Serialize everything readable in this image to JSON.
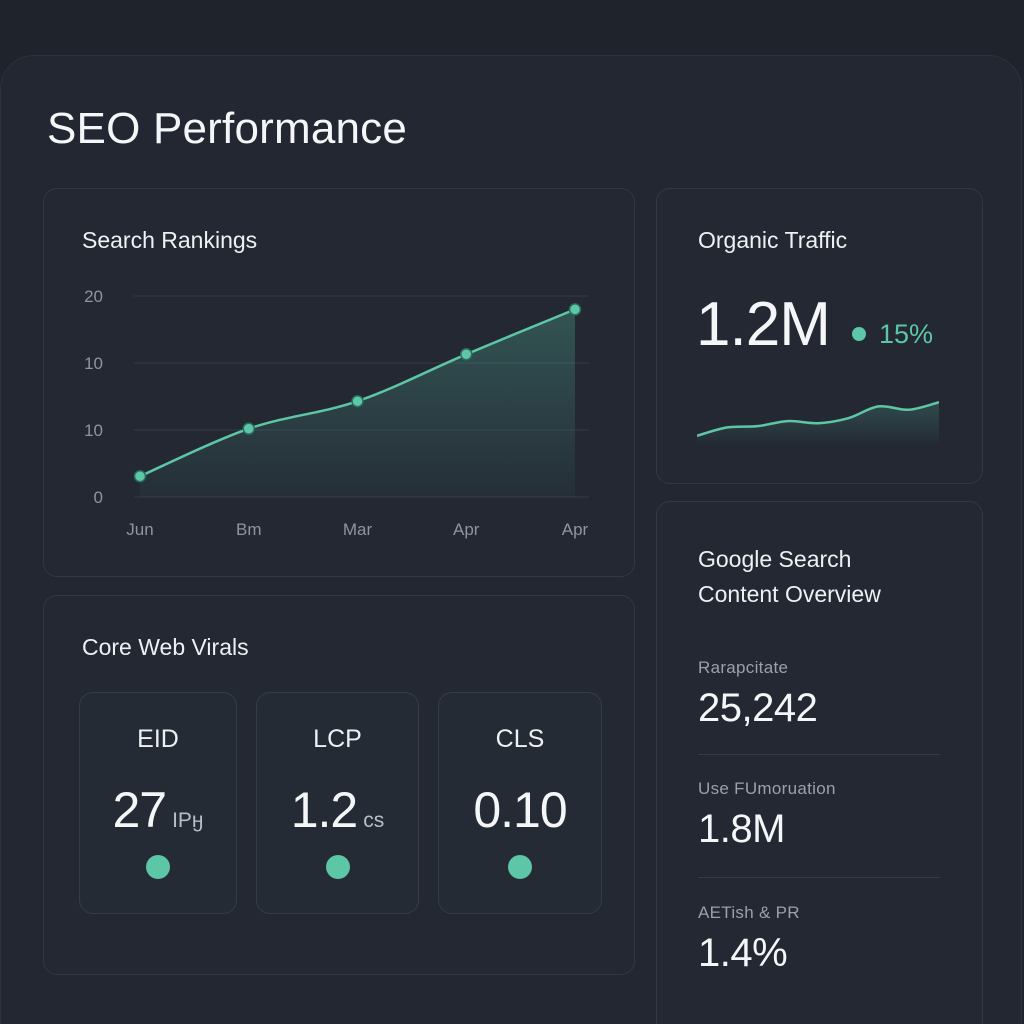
{
  "page": {
    "title": "SEO Performance"
  },
  "colors": {
    "accent": "#5cc6a6",
    "background": "#1f232c",
    "card": "#232833"
  },
  "search_rankings": {
    "title": "Search Rankings",
    "y_tick_labels": [
      "20",
      "10",
      "10",
      "0"
    ],
    "x_tick_labels": [
      "Jun",
      "Bm",
      "Mar",
      "Apr",
      "Apr"
    ]
  },
  "chart_data": {
    "type": "area",
    "title": "Search Rankings",
    "y_tick_labels": [
      "20",
      "10",
      "10",
      "0"
    ],
    "x_tick_labels": [
      "Jun",
      "Bm",
      "Mar",
      "Apr",
      "Apr"
    ],
    "series": [
      {
        "values": [
          3.1,
          10.2,
          14.3,
          21.3,
          28.0
        ]
      }
    ],
    "ylim": [
      0,
      30
    ],
    "grid": true,
    "markers": true
  },
  "organic_traffic": {
    "title": "Organic Traffic",
    "value": "1.2M",
    "change": "15%",
    "sparkline": [
      0.1,
      0.3,
      0.33,
      0.45,
      0.4,
      0.52,
      0.8,
      0.72,
      0.9
    ]
  },
  "core_web_vitals": {
    "title": "Core Web Virals",
    "metrics": [
      {
        "label": "EID",
        "value": "27",
        "unit": "IPӈ",
        "status_color": "#5cc6a6"
      },
      {
        "label": "LCP",
        "value": "1.2",
        "unit": "cs",
        "status_color": "#5cc6a6"
      },
      {
        "label": "CLS",
        "value": "0.10",
        "unit": "",
        "status_color": "#5cc6a6"
      }
    ]
  },
  "content_overview": {
    "title_line1": "Google Search",
    "title_line2": "Content Overview",
    "stats": [
      {
        "label": "Rarapcitate",
        "value": "25,242"
      },
      {
        "label": "Use FUmoruation",
        "value": "1.8M"
      },
      {
        "label": "AETish & PR",
        "value": "1.4%"
      }
    ]
  }
}
